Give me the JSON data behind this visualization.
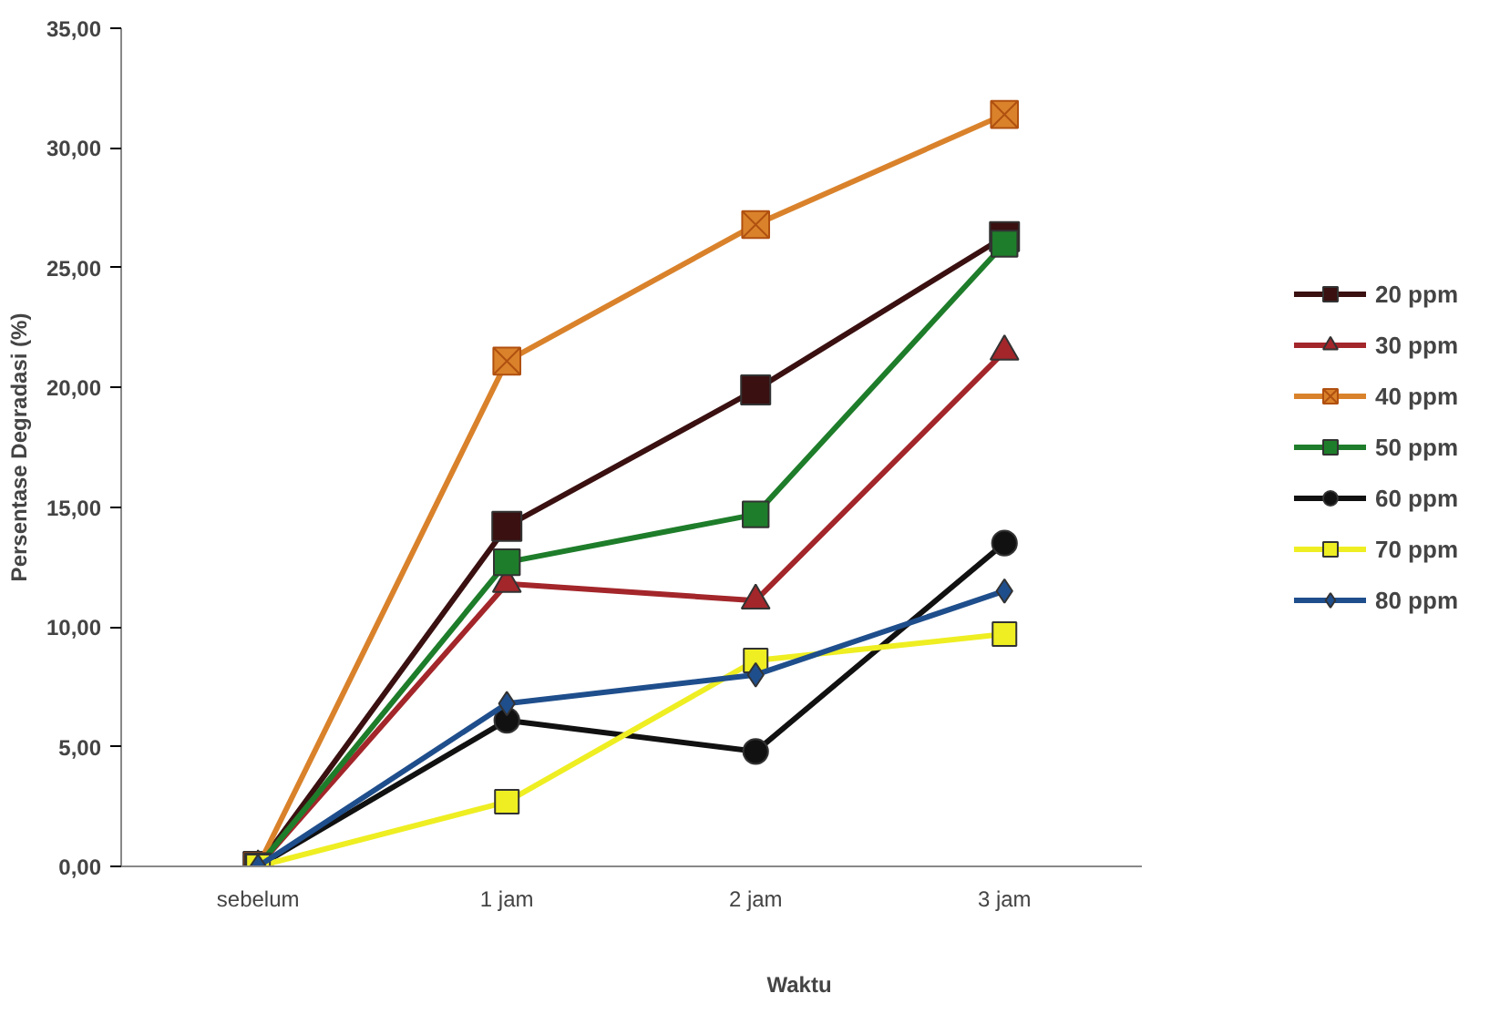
{
  "chart_data": {
    "type": "line",
    "xlabel": "Waktu",
    "ylabel": "Persentase Degradasi (%)",
    "categories": [
      "sebelum",
      "1 jam",
      "2 jam",
      "3 jam"
    ],
    "ylim": [
      0,
      35
    ],
    "yticks": [
      {
        "value": 0,
        "label": "0,00"
      },
      {
        "value": 5,
        "label": "5,00"
      },
      {
        "value": 10,
        "label": "10,00"
      },
      {
        "value": 15,
        "label": "15,00"
      },
      {
        "value": 20,
        "label": "20,00"
      },
      {
        "value": 25,
        "label": "25,00"
      },
      {
        "value": 30,
        "label": "30,00"
      },
      {
        "value": 35,
        "label": "35,00"
      }
    ],
    "grid": false,
    "legend": "right",
    "line_style": "solid",
    "series": [
      {
        "name": "20 ppm",
        "color": "#3a1010",
        "marker": "square",
        "values": [
          0,
          14.2,
          19.9,
          26.3
        ]
      },
      {
        "name": "30 ppm",
        "color": "#a3262a",
        "marker": "triangle",
        "values": [
          0,
          11.8,
          11.1,
          21.5
        ]
      },
      {
        "name": "40 ppm",
        "color": "#d9822b",
        "marker": "cross",
        "values": [
          0,
          21.1,
          26.8,
          31.4
        ]
      },
      {
        "name": "50 ppm",
        "color": "#1e7d2a",
        "marker": "square",
        "values": [
          0,
          12.7,
          14.7,
          26.0
        ]
      },
      {
        "name": "60 ppm",
        "color": "#111111",
        "marker": "circle",
        "values": [
          0,
          6.1,
          4.8,
          13.5
        ]
      },
      {
        "name": "70 ppm",
        "color": "#eeee22",
        "marker": "square",
        "values": [
          0,
          2.7,
          8.6,
          9.7
        ]
      },
      {
        "name": "80 ppm",
        "color": "#1f4e8c",
        "marker": "diamond",
        "values": [
          0,
          6.8,
          8.0,
          11.5
        ]
      }
    ]
  }
}
